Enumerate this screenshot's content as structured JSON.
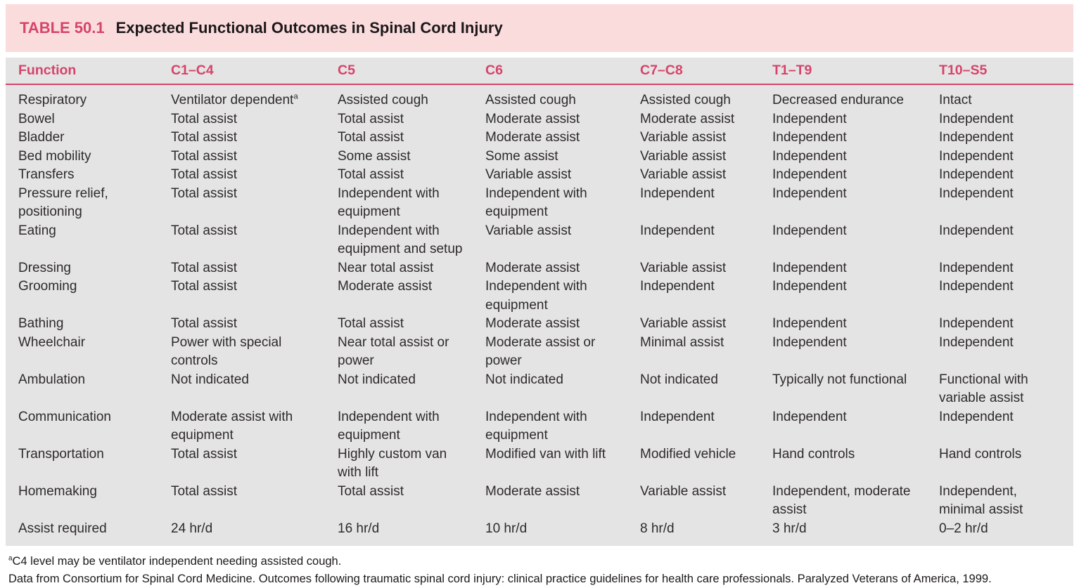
{
  "title_bar": {
    "label": "TABLE 50.1",
    "title": "Expected Functional Outcomes in Spinal Cord Injury"
  },
  "table": {
    "columns": [
      "Function",
      "C1–C4",
      "C5",
      "C6",
      "C7–C8",
      "T1–T9",
      "T10–S5"
    ],
    "rows": [
      [
        "Respiratory",
        "Ventilator dependent^{a}",
        "Assisted cough",
        "Assisted cough",
        "Assisted cough",
        "Decreased endurance",
        "Intact"
      ],
      [
        "Bowel",
        "Total assist",
        "Total assist",
        "Moderate assist",
        "Moderate assist",
        "Independent",
        "Independent"
      ],
      [
        "Bladder",
        "Total assist",
        "Total assist",
        "Moderate assist",
        "Variable assist",
        "Independent",
        "Independent"
      ],
      [
        "Bed mobility",
        "Total assist",
        "Some assist",
        "Some assist",
        "Variable assist",
        "Independent",
        "Independent"
      ],
      [
        "Transfers",
        "Total assist",
        "Total assist",
        "Variable assist",
        "Variable assist",
        "Independent",
        "Independent"
      ],
      [
        "Pressure relief, positioning",
        "Total assist",
        "Independent with equipment",
        "Independent with equipment",
        "Independent",
        "Independent",
        "Independent"
      ],
      [
        "Eating",
        "Total assist",
        "Independent with equipment and setup",
        "Variable assist",
        "Independent",
        "Independent",
        "Independent"
      ],
      [
        "Dressing",
        "Total assist",
        "Near total assist",
        "Moderate assist",
        "Variable assist",
        "Independent",
        "Independent"
      ],
      [
        "Grooming",
        "Total assist",
        "Moderate assist",
        "Independent with equipment",
        "Independent",
        "Independent",
        "Independent"
      ],
      [
        "Bathing",
        "Total assist",
        "Total assist",
        "Moderate assist",
        "Variable assist",
        "Independent",
        "Independent"
      ],
      [
        "Wheelchair",
        "Power with special controls",
        "Near total assist or power",
        "Moderate assist or power",
        "Minimal assist",
        "Independent",
        "Independent"
      ],
      [
        "Ambulation",
        "Not indicated",
        "Not indicated",
        "Not indicated",
        "Not indicated",
        "Typically not functional",
        "Functional with variable assist"
      ],
      [
        "Communication",
        "Moderate assist with equipment",
        "Independent with equipment",
        "Independent with equipment",
        "Independent",
        "Independent",
        "Independent"
      ],
      [
        "Transportation",
        "Total assist",
        "Highly custom van with lift",
        "Modified van with lift",
        "Modified vehicle",
        "Hand controls",
        "Hand controls"
      ],
      [
        "Homemaking",
        "Total assist",
        "Total assist",
        "Moderate assist",
        "Variable assist",
        "Independent, moderate assist",
        "Independent, minimal assist"
      ],
      [
        "Assist required",
        "24 hr/d",
        "16 hr/d",
        "10 hr/d",
        "8 hr/d",
        "3 hr/d",
        "0–2 hr/d"
      ]
    ]
  },
  "footnotes": {
    "note_a": "^{a}C4 level may be ventilator independent needing assisted cough.",
    "source": "Data from Consortium for Spinal Cord Medicine. Outcomes following traumatic spinal cord injury: clinical practice guidelines for health care professionals. Paralyzed Veterans of America, 1999."
  },
  "colors": {
    "accent": "#d5446c",
    "banner_bg": "#fbdcdd",
    "table_bg": "#e5e4e4",
    "text": "#2d2a2b"
  }
}
